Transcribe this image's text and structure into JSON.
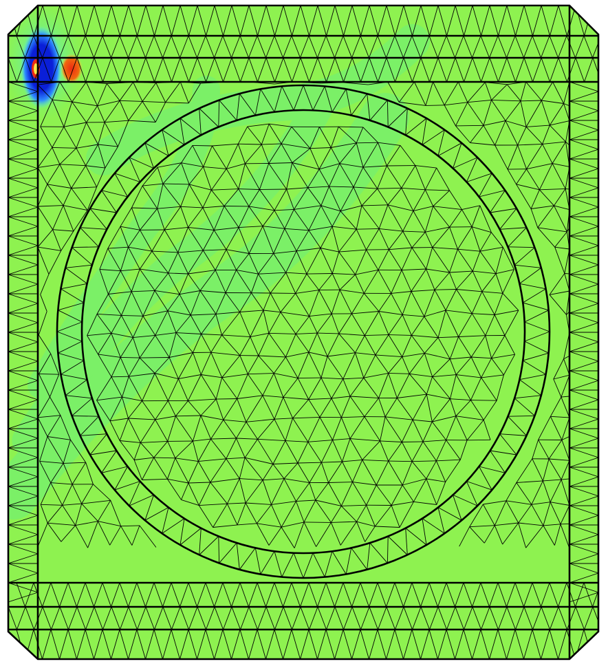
{
  "figure": {
    "kind": "finite-element mesh with contour field",
    "outline": "chamfered-rectangle",
    "inner_feature": "concentric-circles",
    "colors": {
      "background_field": "#8ef250",
      "field_low": "#0a1fd8",
      "field_mid_low": "#2f8cff",
      "field_cyan": "#58f0e8",
      "field_teal": "#6cf07a",
      "field_high": "#ee2a12",
      "field_yellow": "#f7e64a",
      "mesh_line": "#000000"
    }
  }
}
